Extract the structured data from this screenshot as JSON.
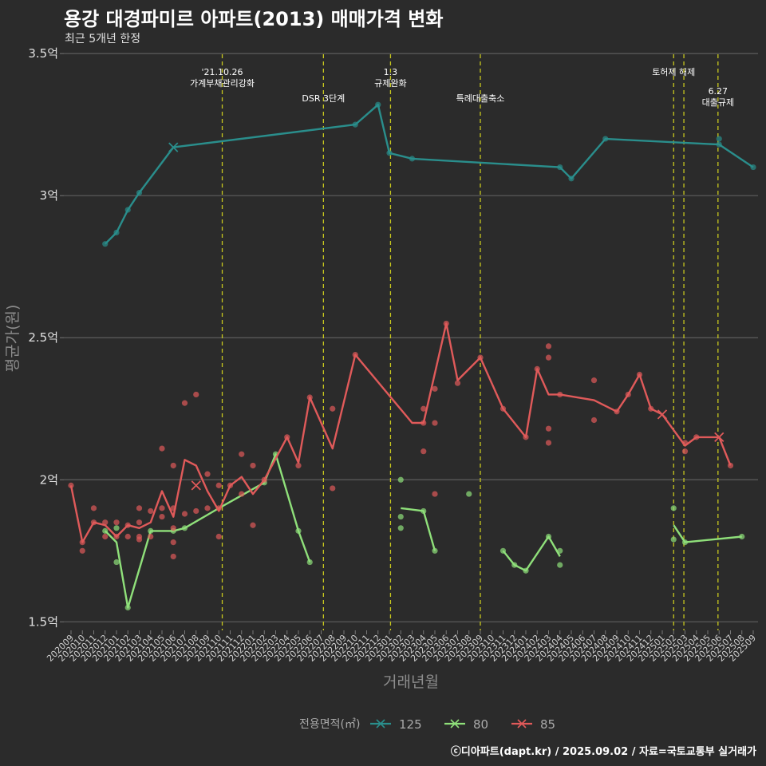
{
  "title": "용강 대경파미르 아파트(2013) 매매가격 변화",
  "subtitle": "최근 5개년 한정",
  "credit": "ⓒ디아파트(dapt.kr) / 2025.09.02 / 자료=국토교통부 실거래가",
  "chart_data": {
    "type": "line",
    "xlabel": "거래년월",
    "ylabel": "평균가(원)",
    "ylim": [
      1.47,
      3.52
    ],
    "yticks": [
      {
        "value": 1.5,
        "label": "1.5억"
      },
      {
        "value": 2.0,
        "label": "2억"
      },
      {
        "value": 2.5,
        "label": "2.5억"
      },
      {
        "value": 3.0,
        "label": "3억"
      },
      {
        "value": 3.5,
        "label": "3.5억"
      }
    ],
    "x_months": [
      "202009",
      "202010",
      "202011",
      "202012",
      "202101",
      "202102",
      "202103",
      "202104",
      "202105",
      "202106",
      "202107",
      "202108",
      "202109",
      "202110",
      "202111",
      "202112",
      "202201",
      "202202",
      "202203",
      "202204",
      "202205",
      "202206",
      "202207",
      "202208",
      "202209",
      "202210",
      "202211",
      "202212",
      "202301",
      "202302",
      "202303",
      "202304",
      "202305",
      "202306",
      "202307",
      "202308",
      "202309",
      "202310",
      "202311",
      "202312",
      "202401",
      "202402",
      "202403",
      "202404",
      "202405",
      "202406",
      "202407",
      "202408",
      "202409",
      "202410",
      "202411",
      "202412",
      "202501",
      "202502",
      "202503",
      "202504",
      "202505",
      "202506",
      "202507",
      "202508",
      "202509"
    ],
    "grid": true,
    "legend": {
      "title": "전용면적(㎡)",
      "position": "bottom"
    },
    "events": [
      {
        "x": 13.3,
        "label_lines": [
          "'21.10.26",
          "가계부채관리강화"
        ],
        "row": 0
      },
      {
        "x": 22.2,
        "label_lines": [
          "DSR 3단계"
        ],
        "row": 1
      },
      {
        "x": 28.1,
        "label_lines": [
          "1.3",
          "규제완화"
        ],
        "row": 0
      },
      {
        "x": 36.0,
        "label_lines": [
          "특례대출축소"
        ],
        "row": 1
      },
      {
        "x": 53.0,
        "label_lines": [
          "토허제 해제"
        ],
        "row": 0
      },
      {
        "x": 53.9,
        "label_lines": [],
        "row": 0
      },
      {
        "x": 56.9,
        "label_lines": [
          "6.27",
          "대출규제"
        ],
        "row": 1
      }
    ],
    "series": [
      {
        "name": "125",
        "color": "#2a8e8c",
        "line": [
          [
            3,
            2.83
          ],
          [
            4,
            2.87
          ],
          [
            5,
            2.95
          ],
          [
            6,
            3.01
          ],
          [
            9,
            3.17
          ],
          [
            25,
            3.25
          ],
          [
            27,
            3.32
          ],
          [
            28,
            3.15
          ],
          [
            30,
            3.13
          ],
          [
            43,
            3.1
          ],
          [
            44,
            3.06
          ],
          [
            47,
            3.2
          ],
          [
            57,
            3.18
          ],
          [
            60,
            3.1
          ]
        ],
        "points": [
          [
            3,
            2.83
          ],
          [
            4,
            2.87
          ],
          [
            5,
            2.95
          ],
          [
            6,
            3.01
          ],
          [
            25,
            3.25
          ],
          [
            27,
            3.32
          ],
          [
            28,
            3.15
          ],
          [
            30,
            3.13
          ],
          [
            43,
            3.1
          ],
          [
            44,
            3.06
          ],
          [
            47,
            3.2
          ],
          [
            57,
            3.2
          ],
          [
            57,
            3.18
          ],
          [
            60,
            3.1
          ]
        ],
        "x_marks": [
          [
            9,
            3.17
          ]
        ]
      },
      {
        "name": "80",
        "color": "#8fe07a",
        "line": [
          [
            [
              3,
              1.82
            ],
            [
              4,
              1.78
            ],
            [
              5,
              1.55
            ],
            [
              7,
              1.82
            ],
            [
              8,
              1.82
            ],
            [
              9,
              1.82
            ],
            [
              10,
              1.83
            ],
            [
              13,
              1.9
            ],
            [
              17,
              1.99
            ],
            [
              18,
              2.09
            ],
            [
              20,
              1.82
            ],
            [
              21,
              1.71
            ]
          ],
          [
            [
              29,
              1.9
            ],
            [
              31,
              1.89
            ],
            [
              32,
              1.75
            ]
          ],
          [
            [
              38,
              1.75
            ],
            [
              39,
              1.7
            ],
            [
              40,
              1.68
            ],
            [
              42,
              1.8
            ],
            [
              43,
              1.73
            ]
          ],
          [
            [
              53,
              1.84
            ],
            [
              54,
              1.78
            ],
            [
              59,
              1.8
            ]
          ]
        ],
        "points": [
          [
            3,
            1.82
          ],
          [
            4,
            1.71
          ],
          [
            4,
            1.83
          ],
          [
            5,
            1.55
          ],
          [
            7,
            1.82
          ],
          [
            9,
            1.82
          ],
          [
            10,
            1.83
          ],
          [
            17,
            1.99
          ],
          [
            18,
            2.09
          ],
          [
            20,
            1.82
          ],
          [
            21,
            1.71
          ],
          [
            29,
            2.0
          ],
          [
            29,
            1.87
          ],
          [
            29,
            1.83
          ],
          [
            31,
            1.89
          ],
          [
            32,
            1.75
          ],
          [
            35,
            1.95
          ],
          [
            38,
            1.75
          ],
          [
            39,
            1.7
          ],
          [
            40,
            1.68
          ],
          [
            42,
            1.8
          ],
          [
            43,
            1.75
          ],
          [
            43,
            1.7
          ],
          [
            53,
            1.9
          ],
          [
            53,
            1.79
          ],
          [
            54,
            1.78
          ],
          [
            59,
            1.8
          ]
        ],
        "x_marks": []
      },
      {
        "name": "85",
        "color": "#e05a5a",
        "line": [
          [
            0,
            1.98
          ],
          [
            1,
            1.78
          ],
          [
            2,
            1.85
          ],
          [
            3,
            1.84
          ],
          [
            4,
            1.8
          ],
          [
            5,
            1.84
          ],
          [
            6,
            1.83
          ],
          [
            7,
            1.85
          ],
          [
            8,
            1.96
          ],
          [
            9,
            1.87
          ],
          [
            10,
            2.07
          ],
          [
            11,
            2.05
          ],
          [
            12,
            1.96
          ],
          [
            13,
            1.89
          ],
          [
            14,
            1.98
          ],
          [
            15,
            2.01
          ],
          [
            16,
            1.95
          ],
          [
            17,
            2.0
          ],
          [
            19,
            2.15
          ],
          [
            20,
            2.06
          ],
          [
            21,
            2.29
          ],
          [
            23,
            2.11
          ],
          [
            25,
            2.44
          ],
          [
            30,
            2.2
          ],
          [
            31,
            2.2
          ],
          [
            33,
            2.55
          ],
          [
            34,
            2.35
          ],
          [
            36,
            2.43
          ],
          [
            38,
            2.25
          ],
          [
            40,
            2.15
          ],
          [
            41,
            2.39
          ],
          [
            42,
            2.3
          ],
          [
            43,
            2.3
          ],
          [
            46,
            2.28
          ],
          [
            48,
            2.24
          ],
          [
            49,
            2.3
          ],
          [
            50,
            2.37
          ],
          [
            51,
            2.25
          ],
          [
            52,
            2.23
          ],
          [
            54,
            2.12
          ],
          [
            55,
            2.15
          ],
          [
            56,
            2.15
          ],
          [
            57,
            2.15
          ],
          [
            58,
            2.05
          ]
        ],
        "points": [
          [
            0,
            1.98
          ],
          [
            1,
            1.75
          ],
          [
            1,
            1.78
          ],
          [
            2,
            1.9
          ],
          [
            2,
            1.85
          ],
          [
            3,
            1.85
          ],
          [
            3,
            1.8
          ],
          [
            4,
            1.85
          ],
          [
            4,
            1.8
          ],
          [
            5,
            1.8
          ],
          [
            5,
            1.84
          ],
          [
            6,
            1.9
          ],
          [
            6,
            1.85
          ],
          [
            6,
            1.79
          ],
          [
            6,
            1.8
          ],
          [
            7,
            1.89
          ],
          [
            7,
            1.8
          ],
          [
            8,
            2.11
          ],
          [
            8,
            1.9
          ],
          [
            8,
            1.87
          ],
          [
            9,
            2.05
          ],
          [
            9,
            1.9
          ],
          [
            9,
            1.78
          ],
          [
            9,
            1.73
          ],
          [
            9,
            1.83
          ],
          [
            10,
            2.27
          ],
          [
            10,
            1.88
          ],
          [
            11,
            2.3
          ],
          [
            11,
            1.89
          ],
          [
            12,
            2.02
          ],
          [
            12,
            1.9
          ],
          [
            13,
            1.98
          ],
          [
            13,
            1.8
          ],
          [
            13,
            1.9
          ],
          [
            14,
            1.98
          ],
          [
            15,
            2.09
          ],
          [
            15,
            1.95
          ],
          [
            16,
            2.05
          ],
          [
            16,
            1.84
          ],
          [
            17,
            2.0
          ],
          [
            19,
            2.15
          ],
          [
            20,
            2.05
          ],
          [
            21,
            2.29
          ],
          [
            23,
            2.25
          ],
          [
            23,
            1.97
          ],
          [
            25,
            2.44
          ],
          [
            31,
            2.25
          ],
          [
            31,
            2.1
          ],
          [
            31,
            2.2
          ],
          [
            32,
            2.32
          ],
          [
            32,
            1.95
          ],
          [
            32,
            2.2
          ],
          [
            33,
            2.55
          ],
          [
            34,
            2.34
          ],
          [
            36,
            2.43
          ],
          [
            38,
            2.25
          ],
          [
            40,
            2.15
          ],
          [
            41,
            2.39
          ],
          [
            42,
            2.47
          ],
          [
            42,
            2.43
          ],
          [
            42,
            2.18
          ],
          [
            42,
            2.13
          ],
          [
            43,
            2.3
          ],
          [
            46,
            2.35
          ],
          [
            46,
            2.21
          ],
          [
            48,
            2.24
          ],
          [
            49,
            2.3
          ],
          [
            50,
            2.37
          ],
          [
            51,
            2.25
          ],
          [
            54,
            2.13
          ],
          [
            54,
            2.1
          ],
          [
            55,
            2.15
          ],
          [
            58,
            2.05
          ]
        ],
        "x_marks": [
          [
            11,
            1.98
          ],
          [
            57,
            2.15
          ],
          [
            52,
            2.23
          ]
        ]
      }
    ]
  }
}
